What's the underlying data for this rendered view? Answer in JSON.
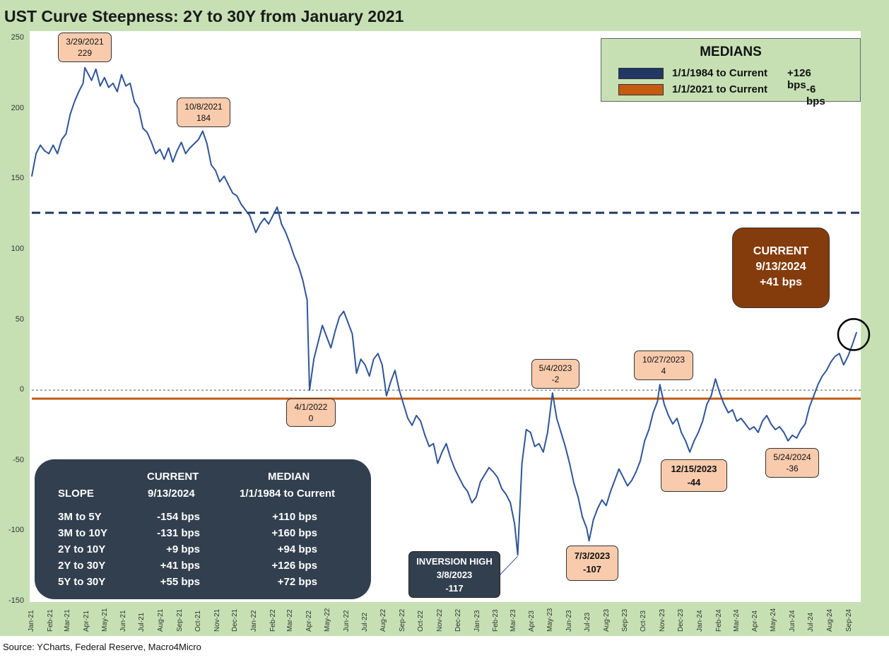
{
  "title": "UST Curve Steepness: 2Y to 30Y from January 2021",
  "source": "Source: YCharts, Federal Reserve, Macro4Micro",
  "medians_box": {
    "title": "MEDIANS",
    "rows": [
      {
        "label": "1/1/1984 to Current",
        "value": "+126 bps",
        "color": "#203864"
      },
      {
        "label": "1/1/2021 to Current",
        "value": "-6 bps",
        "color": "#c55a11"
      }
    ]
  },
  "current_box": {
    "l1": "CURRENT",
    "l2": "9/13/2024",
    "l3": "+41 bps"
  },
  "slope_table": {
    "headers": {
      "current_l1": "CURRENT",
      "median_l1": "MEDIAN",
      "slope": "SLOPE",
      "current_l2": "9/13/2024",
      "median_l2": "1/1/1984 to Current"
    },
    "rows": [
      {
        "label": "3M to 5Y",
        "current": "-154 bps",
        "median": "+110 bps"
      },
      {
        "label": "3M to 10Y",
        "current": "-131 bps",
        "median": "+160 bps"
      },
      {
        "label": "2Y to 10Y",
        "current": "+9 bps",
        "median": "+94 bps"
      },
      {
        "label": "2Y to 30Y",
        "current": "+41 bps",
        "median": "+126 bps"
      },
      {
        "label": "5Y to 30Y",
        "current": "+55 bps",
        "median": "+72 bps"
      }
    ]
  },
  "annotations": [
    {
      "date": "3/29/2021",
      "value": "229"
    },
    {
      "date": "10/8/2021",
      "value": "184"
    },
    {
      "date": "4/1/2022",
      "value": "0"
    },
    {
      "date": "5/4/2023",
      "value": "-2"
    },
    {
      "date": "10/27/2023",
      "value": "4"
    },
    {
      "date": "12/15/2023",
      "value": "-44"
    },
    {
      "date": "5/24/2024",
      "value": "-36"
    },
    {
      "date": "7/3/2023",
      "value": "-107"
    },
    {
      "label": "INVERSION HIGH",
      "date": "3/8/2023",
      "value": "-117"
    }
  ],
  "chart_data": {
    "type": "line",
    "title": "UST Curve Steepness: 2Y to 30Y from January 2021",
    "ylim": [
      -150,
      250
    ],
    "yticks": [
      250,
      200,
      150,
      100,
      50,
      0,
      -50,
      -100,
      -150
    ],
    "xticks": [
      "Jan-21",
      "Feb-21",
      "Mar-21",
      "Apr-21",
      "May-21",
      "Jun-21",
      "Jul-21",
      "Aug-21",
      "Sep-21",
      "Oct-21",
      "Nov-21",
      "Dec-21",
      "Jan-22",
      "Feb-22",
      "Mar-22",
      "Apr-22",
      "May-22",
      "Jun-22",
      "Jul-22",
      "Aug-22",
      "Sep-22",
      "Oct-22",
      "Nov-22",
      "Dec-22",
      "Jan-23",
      "Feb-23",
      "Mar-23",
      "Apr-23",
      "May-23",
      "Jun-23",
      "Jul-23",
      "Aug-23",
      "Sep-23",
      "Oct-23",
      "Nov-23",
      "Dec-23",
      "Jan-24",
      "Feb-24",
      "Mar-24",
      "Apr-24",
      "May-24",
      "Jun-24",
      "Jul-24",
      "Aug-24",
      "Sep-24"
    ],
    "reference_lines": [
      {
        "y": 126,
        "color": "#203864",
        "style": "dashed"
      },
      {
        "y": -6,
        "color": "#c55a11",
        "style": "solid"
      },
      {
        "y": 0,
        "color": "#555555",
        "style": "dotted"
      }
    ],
    "series": [
      {
        "color": "#2f5597",
        "points": [
          [
            "2021-01-01",
            152
          ],
          [
            "2021-01-08",
            168
          ],
          [
            "2021-01-15",
            174
          ],
          [
            "2021-01-22",
            170
          ],
          [
            "2021-01-29",
            168
          ],
          [
            "2021-02-05",
            174
          ],
          [
            "2021-02-12",
            168
          ],
          [
            "2021-02-19",
            178
          ],
          [
            "2021-02-26",
            182
          ],
          [
            "2021-03-05",
            196
          ],
          [
            "2021-03-12",
            205
          ],
          [
            "2021-03-19",
            212
          ],
          [
            "2021-03-26",
            218
          ],
          [
            "2021-03-29",
            229
          ],
          [
            "2021-04-09",
            220
          ],
          [
            "2021-04-16",
            228
          ],
          [
            "2021-04-23",
            216
          ],
          [
            "2021-04-30",
            222
          ],
          [
            "2021-05-07",
            215
          ],
          [
            "2021-05-14",
            218
          ],
          [
            "2021-05-21",
            212
          ],
          [
            "2021-05-28",
            224
          ],
          [
            "2021-06-04",
            216
          ],
          [
            "2021-06-11",
            218
          ],
          [
            "2021-06-18",
            205
          ],
          [
            "2021-06-25",
            200
          ],
          [
            "2021-07-02",
            186
          ],
          [
            "2021-07-09",
            183
          ],
          [
            "2021-07-16",
            176
          ],
          [
            "2021-07-23",
            168
          ],
          [
            "2021-07-30",
            171
          ],
          [
            "2021-08-06",
            164
          ],
          [
            "2021-08-13",
            172
          ],
          [
            "2021-08-20",
            162
          ],
          [
            "2021-08-27",
            170
          ],
          [
            "2021-09-03",
            176
          ],
          [
            "2021-09-10",
            168
          ],
          [
            "2021-09-17",
            172
          ],
          [
            "2021-09-24",
            175
          ],
          [
            "2021-10-01",
            178
          ],
          [
            "2021-10-08",
            184
          ],
          [
            "2021-10-15",
            175
          ],
          [
            "2021-10-22",
            160
          ],
          [
            "2021-10-29",
            156
          ],
          [
            "2021-11-05",
            148
          ],
          [
            "2021-11-12",
            152
          ],
          [
            "2021-11-19",
            146
          ],
          [
            "2021-11-26",
            140
          ],
          [
            "2021-12-03",
            138
          ],
          [
            "2021-12-10",
            132
          ],
          [
            "2021-12-17",
            128
          ],
          [
            "2021-12-24",
            124
          ],
          [
            "2022-01-03",
            112
          ],
          [
            "2022-01-10",
            118
          ],
          [
            "2022-01-17",
            122
          ],
          [
            "2022-01-24",
            118
          ],
          [
            "2022-01-31",
            124
          ],
          [
            "2022-02-07",
            130
          ],
          [
            "2022-02-14",
            118
          ],
          [
            "2022-02-21",
            112
          ],
          [
            "2022-02-28",
            104
          ],
          [
            "2022-03-07",
            95
          ],
          [
            "2022-03-14",
            88
          ],
          [
            "2022-03-21",
            78
          ],
          [
            "2022-03-28",
            64
          ],
          [
            "2022-04-01",
            0
          ],
          [
            "2022-04-08",
            22
          ],
          [
            "2022-04-15",
            34
          ],
          [
            "2022-04-22",
            46
          ],
          [
            "2022-04-29",
            38
          ],
          [
            "2022-05-06",
            30
          ],
          [
            "2022-05-13",
            42
          ],
          [
            "2022-05-20",
            52
          ],
          [
            "2022-05-27",
            56
          ],
          [
            "2022-06-03",
            48
          ],
          [
            "2022-06-10",
            40
          ],
          [
            "2022-06-17",
            12
          ],
          [
            "2022-06-24",
            22
          ],
          [
            "2022-07-01",
            18
          ],
          [
            "2022-07-08",
            10
          ],
          [
            "2022-07-15",
            22
          ],
          [
            "2022-07-22",
            26
          ],
          [
            "2022-07-29",
            18
          ],
          [
            "2022-08-05",
            -4
          ],
          [
            "2022-08-12",
            6
          ],
          [
            "2022-08-19",
            14
          ],
          [
            "2022-08-26",
            0
          ],
          [
            "2022-09-02",
            -10
          ],
          [
            "2022-09-09",
            -20
          ],
          [
            "2022-09-16",
            -25
          ],
          [
            "2022-09-23",
            -18
          ],
          [
            "2022-09-30",
            -22
          ],
          [
            "2022-10-07",
            -32
          ],
          [
            "2022-10-14",
            -40
          ],
          [
            "2022-10-21",
            -38
          ],
          [
            "2022-10-28",
            -52
          ],
          [
            "2022-11-04",
            -44
          ],
          [
            "2022-11-11",
            -38
          ],
          [
            "2022-11-18",
            -48
          ],
          [
            "2022-11-25",
            -56
          ],
          [
            "2022-12-02",
            -62
          ],
          [
            "2022-12-09",
            -68
          ],
          [
            "2022-12-16",
            -72
          ],
          [
            "2022-12-23",
            -80
          ],
          [
            "2022-12-30",
            -76
          ],
          [
            "2023-01-06",
            -65
          ],
          [
            "2023-01-13",
            -60
          ],
          [
            "2023-01-20",
            -55
          ],
          [
            "2023-01-27",
            -58
          ],
          [
            "2023-02-03",
            -62
          ],
          [
            "2023-02-10",
            -70
          ],
          [
            "2023-02-17",
            -74
          ],
          [
            "2023-02-24",
            -80
          ],
          [
            "2023-03-03",
            -95
          ],
          [
            "2023-03-08",
            -117
          ],
          [
            "2023-03-15",
            -52
          ],
          [
            "2023-03-22",
            -28
          ],
          [
            "2023-03-29",
            -30
          ],
          [
            "2023-04-05",
            -40
          ],
          [
            "2023-04-12",
            -38
          ],
          [
            "2023-04-19",
            -44
          ],
          [
            "2023-04-26",
            -30
          ],
          [
            "2023-05-04",
            -2
          ],
          [
            "2023-05-11",
            -20
          ],
          [
            "2023-05-18",
            -30
          ],
          [
            "2023-05-25",
            -40
          ],
          [
            "2023-06-01",
            -52
          ],
          [
            "2023-06-08",
            -66
          ],
          [
            "2023-06-15",
            -76
          ],
          [
            "2023-06-22",
            -90
          ],
          [
            "2023-06-29",
            -98
          ],
          [
            "2023-07-03",
            -107
          ],
          [
            "2023-07-10",
            -92
          ],
          [
            "2023-07-17",
            -84
          ],
          [
            "2023-07-24",
            -78
          ],
          [
            "2023-07-31",
            -82
          ],
          [
            "2023-08-07",
            -72
          ],
          [
            "2023-08-14",
            -64
          ],
          [
            "2023-08-21",
            -56
          ],
          [
            "2023-08-28",
            -62
          ],
          [
            "2023-09-04",
            -68
          ],
          [
            "2023-09-11",
            -64
          ],
          [
            "2023-09-18",
            -58
          ],
          [
            "2023-09-25",
            -50
          ],
          [
            "2023-10-02",
            -36
          ],
          [
            "2023-10-09",
            -28
          ],
          [
            "2023-10-16",
            -16
          ],
          [
            "2023-10-23",
            -8
          ],
          [
            "2023-10-27",
            4
          ],
          [
            "2023-11-03",
            -10
          ],
          [
            "2023-11-10",
            -18
          ],
          [
            "2023-11-17",
            -24
          ],
          [
            "2023-11-24",
            -20
          ],
          [
            "2023-12-01",
            -30
          ],
          [
            "2023-12-08",
            -36
          ],
          [
            "2023-12-15",
            -44
          ],
          [
            "2023-12-22",
            -36
          ],
          [
            "2023-12-29",
            -30
          ],
          [
            "2024-01-05",
            -22
          ],
          [
            "2024-01-12",
            -10
          ],
          [
            "2024-01-19",
            -4
          ],
          [
            "2024-01-26",
            8
          ],
          [
            "2024-02-02",
            -2
          ],
          [
            "2024-02-09",
            -10
          ],
          [
            "2024-02-16",
            -16
          ],
          [
            "2024-02-23",
            -14
          ],
          [
            "2024-03-01",
            -22
          ],
          [
            "2024-03-08",
            -20
          ],
          [
            "2024-03-15",
            -24
          ],
          [
            "2024-03-22",
            -28
          ],
          [
            "2024-03-29",
            -26
          ],
          [
            "2024-04-05",
            -30
          ],
          [
            "2024-04-12",
            -22
          ],
          [
            "2024-04-19",
            -18
          ],
          [
            "2024-04-26",
            -24
          ],
          [
            "2024-05-03",
            -28
          ],
          [
            "2024-05-10",
            -26
          ],
          [
            "2024-05-17",
            -30
          ],
          [
            "2024-05-24",
            -36
          ],
          [
            "2024-05-31",
            -32
          ],
          [
            "2024-06-07",
            -34
          ],
          [
            "2024-06-14",
            -28
          ],
          [
            "2024-06-21",
            -24
          ],
          [
            "2024-06-28",
            -12
          ],
          [
            "2024-07-05",
            -4
          ],
          [
            "2024-07-12",
            4
          ],
          [
            "2024-07-19",
            10
          ],
          [
            "2024-07-26",
            14
          ],
          [
            "2024-08-02",
            20
          ],
          [
            "2024-08-09",
            24
          ],
          [
            "2024-08-16",
            26
          ],
          [
            "2024-08-23",
            18
          ],
          [
            "2024-08-30",
            24
          ],
          [
            "2024-09-06",
            32
          ],
          [
            "2024-09-13",
            41
          ]
        ]
      }
    ]
  }
}
